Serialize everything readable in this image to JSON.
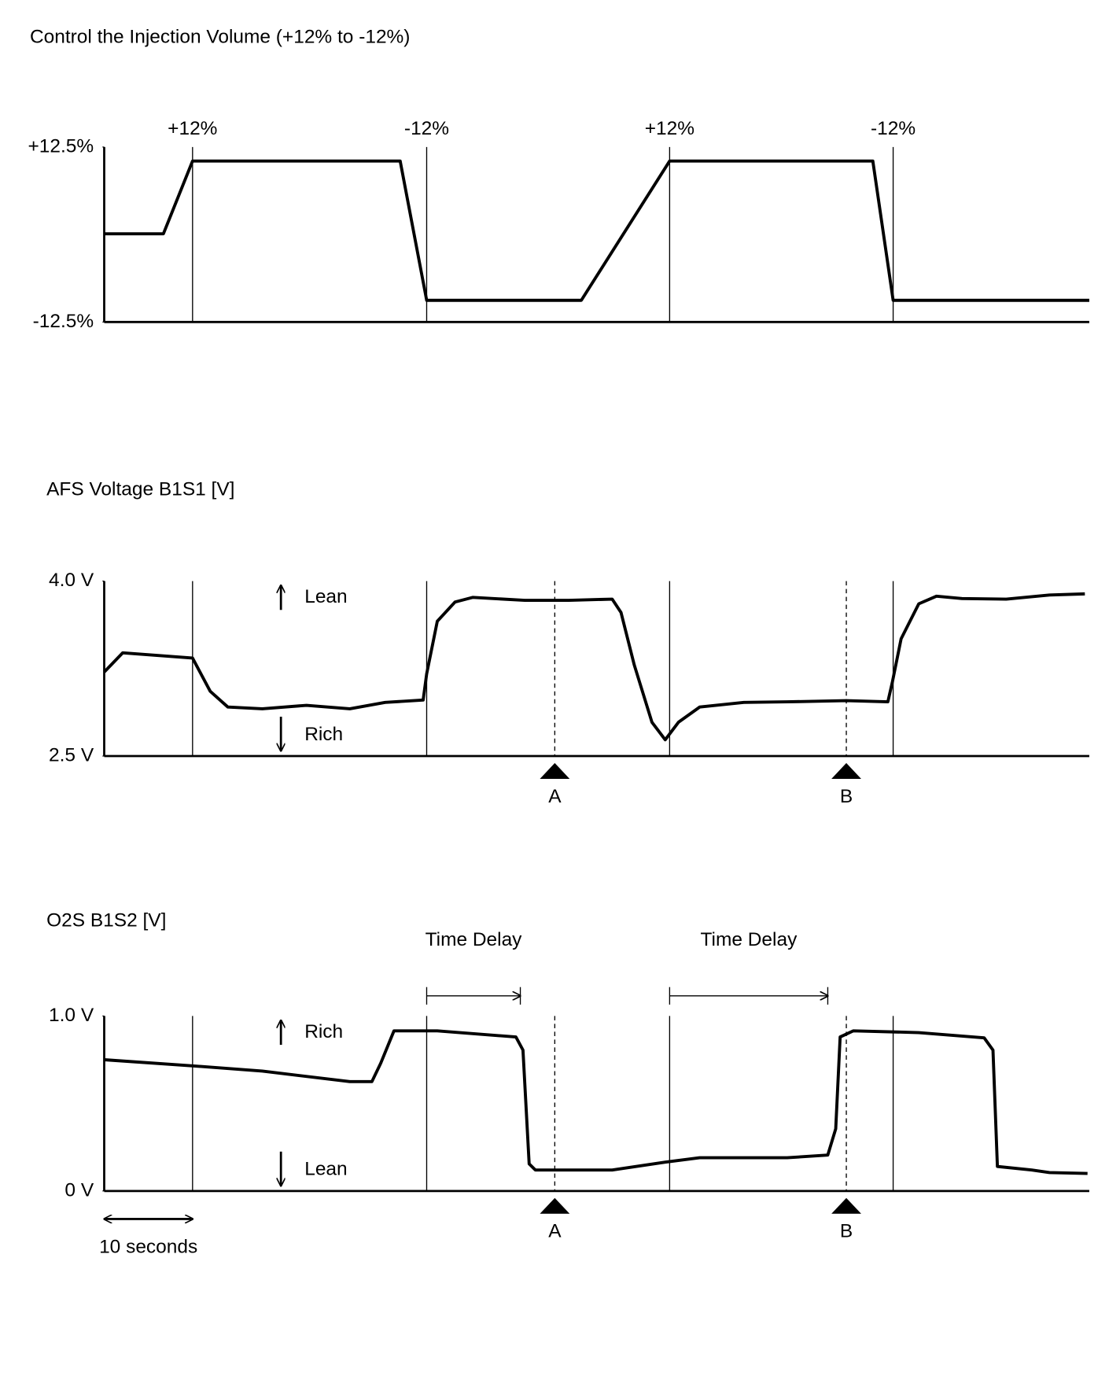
{
  "chart_data": [
    {
      "type": "line",
      "title": "Control the Injection Volume (+12% to -12%)",
      "x": [
        0,
        6.7,
        10,
        33.5,
        36.5,
        54,
        64,
        87,
        89.3,
        111.5
      ],
      "values": [
        0.1,
        0.1,
        10.5,
        10.5,
        -9.4,
        -9.4,
        10.5,
        10.5,
        -9.4,
        -9.4
      ],
      "color": "#000000",
      "xlim": [
        0,
        111.5
      ],
      "ylim": [
        -12.5,
        12.5
      ],
      "yticks": [
        {
          "value": 12.5,
          "label": "+12.5%"
        },
        {
          "value": -12.5,
          "label": "-12.5%"
        }
      ],
      "vlines": [
        {
          "x": 10,
          "label": "+12%"
        },
        {
          "x": 36.5,
          "label": "-12%"
        },
        {
          "x": 64,
          "label": "+12%"
        },
        {
          "x": 89.3,
          "label": "-12%"
        }
      ]
    },
    {
      "type": "line",
      "title": "AFS Voltage B1S1 [V]",
      "x": [
        0,
        2.1,
        10,
        12,
        14,
        17.9,
        22.9,
        27.8,
        31.8,
        36.1,
        36.5,
        37.7,
        39.7,
        41.7,
        47.6,
        52.6,
        57.5,
        58.5,
        60,
        62,
        63.5,
        65,
        67.4,
        72.4,
        77.3,
        84,
        88.7,
        89.2,
        90.2,
        92.2,
        94.2,
        97.1,
        102.1,
        107,
        111
      ],
      "values": [
        3.22,
        3.385,
        3.34,
        3.055,
        2.92,
        2.905,
        2.935,
        2.905,
        2.96,
        2.98,
        3.205,
        3.655,
        3.82,
        3.86,
        3.835,
        3.835,
        3.845,
        3.73,
        3.28,
        2.79,
        2.64,
        2.79,
        2.92,
        2.96,
        2.965,
        2.975,
        2.965,
        3.13,
        3.505,
        3.805,
        3.87,
        3.85,
        3.845,
        3.88,
        3.89
      ],
      "color": "#000000",
      "xlim": [
        0,
        111.5
      ],
      "ylim": [
        2.5,
        4.0
      ],
      "yticks": [
        {
          "value": 4.0,
          "label": "4.0 V"
        },
        {
          "value": 2.5,
          "label": "2.5 V"
        }
      ],
      "vlines": [
        {
          "x": 10
        },
        {
          "x": 36.5
        },
        {
          "x": 64
        },
        {
          "x": 89.3
        }
      ],
      "markers": [
        {
          "x": 51,
          "label": "A"
        },
        {
          "x": 84,
          "label": "B"
        }
      ],
      "top_note": "Lean",
      "bottom_note": "Rich"
    },
    {
      "type": "line",
      "title": "O2S B1S2 [V]",
      "x": [
        0,
        10,
        17.9,
        27.8,
        30.3,
        31.3,
        32.8,
        37.7,
        46.6,
        47.4,
        48.1,
        48.8,
        57.5,
        63.5,
        67.4,
        77.3,
        81.9,
        82.8,
        83.3,
        84.8,
        92.2,
        99.6,
        100.6,
        101.1,
        105,
        107,
        111.3
      ],
      "values": [
        0.75,
        0.715,
        0.685,
        0.625,
        0.625,
        0.73,
        0.915,
        0.915,
        0.88,
        0.805,
        0.155,
        0.12,
        0.12,
        0.165,
        0.19,
        0.19,
        0.205,
        0.355,
        0.88,
        0.915,
        0.905,
        0.875,
        0.805,
        0.14,
        0.12,
        0.105,
        0.1
      ],
      "color": "#000000",
      "xlim": [
        0,
        111.5
      ],
      "ylim": [
        0,
        1.0
      ],
      "yticks": [
        {
          "value": 1,
          "label": "1.0 V"
        },
        {
          "value": 0,
          "label": "0 V"
        }
      ],
      "vlines": [
        {
          "x": 10
        },
        {
          "x": 36.5
        },
        {
          "x": 64
        },
        {
          "x": 89.3
        }
      ],
      "markers": [
        {
          "x": 51,
          "label": "A"
        },
        {
          "x": 84,
          "label": "B"
        }
      ],
      "top_note": "Rich",
      "bottom_note": "Lean",
      "time_delays": [
        {
          "label": "Time Delay",
          "start": 36.5,
          "end": 47.1
        },
        {
          "label": "Time Delay",
          "start": 64,
          "end": 81.9
        }
      ],
      "scale_bar": {
        "label": "10 seconds",
        "start": 0,
        "end": 10
      }
    }
  ]
}
